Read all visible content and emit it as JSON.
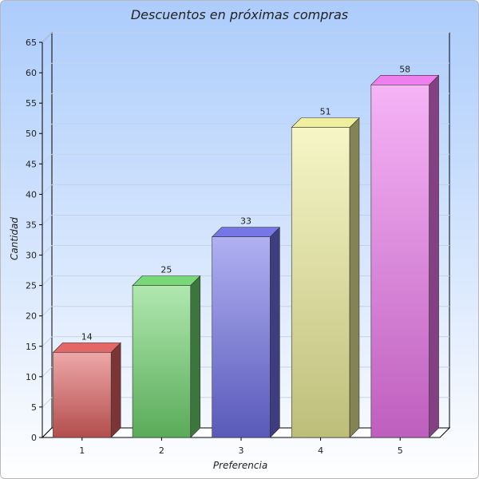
{
  "chart_data": {
    "type": "bar",
    "title": "Descuentos en próximas compras",
    "xlabel": "Preferencia",
    "ylabel": "Cantidad",
    "categories": [
      "1",
      "2",
      "3",
      "4",
      "5"
    ],
    "values": [
      14,
      25,
      33,
      51,
      58
    ],
    "ylim": [
      0,
      65
    ],
    "yticks": [
      0,
      5,
      10,
      15,
      20,
      25,
      30,
      35,
      40,
      45,
      50,
      55,
      60,
      65
    ],
    "grid": true,
    "legend": "none",
    "colors": [
      "#e06060",
      "#6fd66f",
      "#6f6fe8",
      "#eeee99",
      "#ee77ee"
    ]
  }
}
